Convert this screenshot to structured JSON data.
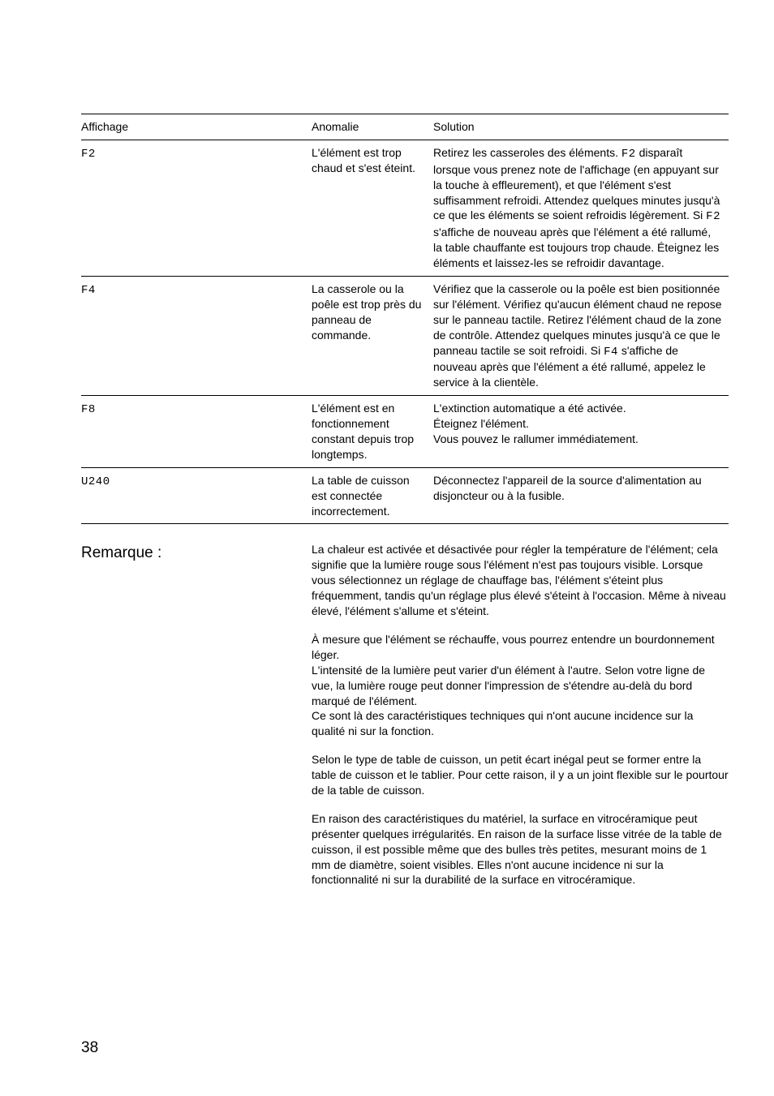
{
  "table": {
    "headers": {
      "col1": "Affichage",
      "col2": "Anomalie",
      "col3": "Solution"
    },
    "rows": [
      {
        "code": "F2",
        "anomaly": "L'élément est trop chaud et s'est éteint.",
        "sol_pre": "Retirez les casseroles des éléments. ",
        "sol_code1": "F2",
        "sol_mid": " disparaît lorsque vous prenez note de l'affichage (en appuyant sur la touche à effleurement), et que l'élément s'est suffisamment refroidi. Attendez quelques minutes jusqu'à ce que les éléments se soient refroidis légèrement. Si ",
        "sol_code2": "F2",
        "sol_post": " s'affiche de nouveau après que l'élément a été rallumé, la table chauffante est toujours trop chaude. Éteignez les éléments et laissez-les se refroidir davantage."
      },
      {
        "code": "F4",
        "anomaly": "La casserole ou la poêle est trop près du panneau de commande.",
        "sol_pre": "Vérifiez que la casserole ou la poêle est bien positionnée sur l'élément. Vérifiez qu'aucun élément chaud ne repose sur le panneau tactile. Retirez l'élément chaud de la zone de contrôle. Attendez quelques minutes jusqu'à ce que le panneau tactile se soit refroidi. Si ",
        "sol_code1": "F4",
        "sol_mid": "",
        "sol_code2": "",
        "sol_post": " s'affiche de nouveau après que l'élément a été rallumé, appelez le service à la clientèle."
      },
      {
        "code": "F8",
        "anomaly": "L'élément est en fonctionnement constant depuis trop longtemps.",
        "sol_pre": "L'extinction automatique a été activée.\nÉteignez l'élément.\nVous pouvez le rallumer immédiatement.",
        "sol_code1": "",
        "sol_mid": "",
        "sol_code2": "",
        "sol_post": ""
      },
      {
        "code": "U240",
        "anomaly": "La table de cuisson est connectée incorrectement.",
        "sol_pre": "Déconnectez l'appareil de la source d'alimentation au disjoncteur ou à la fusible.",
        "sol_code1": "",
        "sol_mid": "",
        "sol_code2": "",
        "sol_post": ""
      }
    ]
  },
  "remarque": {
    "label": "Remarque :",
    "p1": "La chaleur est activée et désactivée pour régler la température de l'élément; cela signifie que la lumière rouge sous l'élément n'est pas toujours visible. Lorsque vous sélectionnez un réglage de chauffage bas, l'élément s'éteint plus fréquemment, tandis qu'un réglage plus élevé s'éteint à l'occasion. Même à niveau élevé, l'élément s'allume et s'éteint.",
    "p2": "À mesure que l'élément se réchauffe, vous pourrez entendre un bourdonnement léger.\nL'intensité de la lumière peut varier d'un élément à l'autre. Selon votre ligne de vue, la lumière rouge peut donner l'impression de s'étendre au-delà du bord marqué de l'élément.\nCe sont là des caractéristiques techniques qui n'ont aucune incidence sur la qualité ni sur la fonction.",
    "p3": "Selon le type de table de cuisson, un petit écart inégal peut se former entre la table de cuisson et le tablier. Pour cette raison, il y a un joint flexible sur le pourtour de la table de cuisson.",
    "p4": "En raison des caractéristiques du matériel, la surface en vitrocéramique peut présenter quelques irrégularités. En raison de la surface lisse vitrée de la table de cuisson, il est possible même que des bulles très petites, mesurant moins de 1 mm de diamètre, soient visibles. Elles n'ont aucune incidence ni sur la fonctionnalité ni sur la durabilité de la surface en vitrocéramique."
  },
  "page": "38"
}
